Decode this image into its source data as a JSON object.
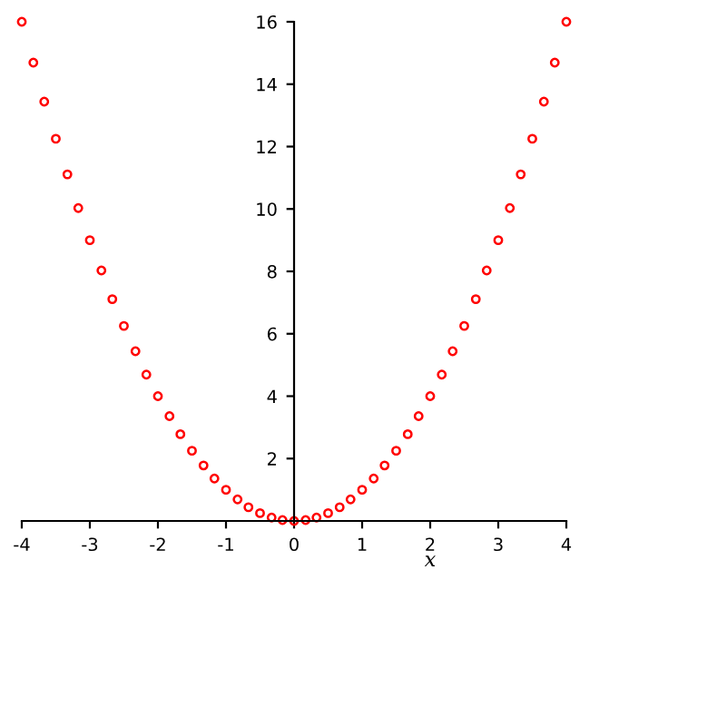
{
  "chart_data": {
    "type": "scatter",
    "xlabel": "x",
    "x": [
      -4,
      -3.83,
      -3.67,
      -3.5,
      -3.33,
      -3.17,
      -3,
      -2.83,
      -2.67,
      -2.5,
      -2.33,
      -2.17,
      -2,
      -1.83,
      -1.67,
      -1.5,
      -1.33,
      -1.17,
      -1,
      -0.83,
      -0.67,
      -0.5,
      -0.33,
      -0.17,
      0,
      0.17,
      0.33,
      0.5,
      0.67,
      0.83,
      1,
      1.17,
      1.33,
      1.5,
      1.67,
      1.83,
      2,
      2.17,
      2.33,
      2.5,
      2.67,
      2.83,
      3,
      3.17,
      3.33,
      3.5,
      3.67,
      3.83,
      4
    ],
    "series": [
      {
        "color": "#ff0000",
        "values": [
          16,
          14.69,
          13.44,
          12.25,
          11.11,
          10.03,
          9,
          8.03,
          7.11,
          6.25,
          5.44,
          4.69,
          4,
          3.36,
          2.78,
          2.25,
          1.78,
          1.36,
          1,
          0.69,
          0.44,
          0.25,
          0.11,
          0.03,
          0,
          0.03,
          0.11,
          0.25,
          0.44,
          0.69,
          1,
          1.36,
          1.78,
          2.25,
          2.78,
          3.36,
          4,
          4.69,
          5.44,
          6.25,
          7.11,
          8.03,
          9,
          10.03,
          11.11,
          12.25,
          13.44,
          14.69,
          16
        ]
      }
    ],
    "xlim": [
      -4,
      4
    ],
    "ylim": [
      0,
      16
    ],
    "xticks": [
      -4,
      -3,
      -2,
      -1,
      0,
      1,
      2,
      3,
      4
    ],
    "yticks": [
      {
        "value": 0,
        "label": null
      },
      2,
      4,
      6,
      8,
      10,
      12,
      14,
      16
    ],
    "marker": "circle",
    "grid": false,
    "legend": false
  }
}
